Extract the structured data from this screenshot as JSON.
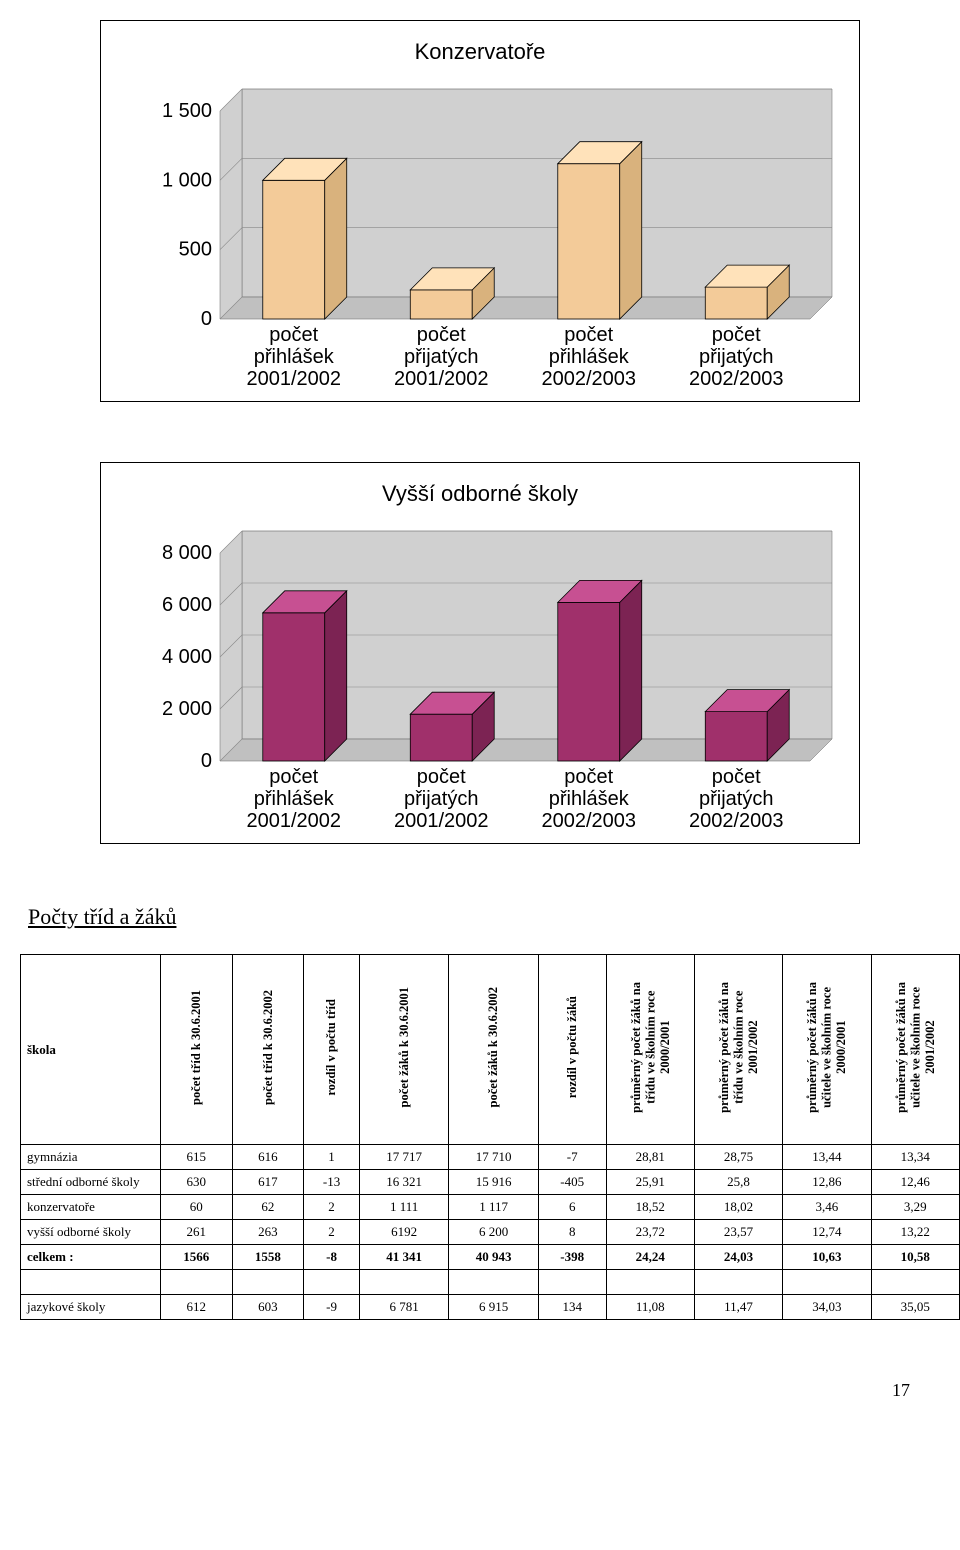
{
  "chart1": {
    "title": "Konzervatoře",
    "categories": [
      "počet\npřihlášek\n2001/2002",
      "počet\npřijatých\n2001/2002",
      "počet\npřihlášek\n2002/2003",
      "počet\npřijatých\n2002/2003"
    ],
    "values": [
      1000,
      210,
      1120,
      230
    ],
    "ymax": 1500,
    "ytick_step": 500,
    "bar_face": "#f3cb99",
    "bar_side": "#d9b27d",
    "bar_top": "#ffe2ba",
    "floor": "#c0c0c0",
    "back": "#d0d0d0",
    "tick_font": "Arial",
    "tick_size": 20
  },
  "chart2": {
    "title": "Vyšší odborné školy",
    "categories": [
      "počet\npřihlášek\n2001/2002",
      "počet\npřijatých\n2001/2002",
      "počet\npřihlášek\n2002/2003",
      "počet\npřijatých\n2002/2003"
    ],
    "values": [
      5700,
      1800,
      6100,
      1900
    ],
    "ymax": 8000,
    "ytick_step": 2000,
    "bar_face": "#a0306b",
    "bar_side": "#7c2353",
    "bar_top": "#c75092",
    "floor": "#c0c0c0",
    "back": "#d0d0d0",
    "tick_font": "Arial",
    "tick_size": 20
  },
  "section_title": "Počty tříd a žáků",
  "table": {
    "first_header": "škola",
    "columns": [
      "počet tříd k 30.6.2001",
      "počet tříd k 30.6.2002",
      "rozdíl v počtu tříd",
      "počet žáků k 30.6.2001",
      "počet žáků k 30.6.2002",
      "rozdíl v počtu žáků",
      "průměrný počet žáků na\ntřídu ve školním roce\n2000/2001",
      "průměrný počet žáků na\ntřídu ve školním roce\n2001/2002",
      "průměrný počet žáků na\nučitele ve školním roce\n2000/2001",
      "průměrný počet žáků na\nučitele ve školním roce\n2001/2002"
    ],
    "rows": [
      {
        "label": "gymnázia",
        "cells": [
          "615",
          "616",
          "1",
          "17 717",
          "17 710",
          "-7",
          "28,81",
          "28,75",
          "13,44",
          "13,34"
        ]
      },
      {
        "label": "střední odborné školy",
        "cells": [
          "630",
          "617",
          "-13",
          "16 321",
          "15 916",
          "-405",
          "25,91",
          "25,8",
          "12,86",
          "12,46"
        ]
      },
      {
        "label": "konzervatoře",
        "cells": [
          "60",
          "62",
          "2",
          "1 111",
          "1 117",
          "6",
          "18,52",
          "18,02",
          "3,46",
          "3,29"
        ]
      },
      {
        "label": "vyšší odborné školy",
        "cells": [
          "261",
          "263",
          "2",
          "6192",
          "6 200",
          "8",
          "23,72",
          "23,57",
          "12,74",
          "13,22"
        ]
      },
      {
        "label": "celkem :",
        "cells": [
          "1566",
          "1558",
          "-8",
          "41 341",
          "40 943",
          "-398",
          "24,24",
          "24,03",
          "10,63",
          "10,58"
        ]
      }
    ],
    "extra_row": {
      "label": "jazykové školy",
      "cells": [
        "612",
        "603",
        "-9",
        "6 781",
        "6 915",
        "134",
        "11,08",
        "11,47",
        "34,03",
        "35,05"
      ]
    }
  },
  "page_number": "17"
}
